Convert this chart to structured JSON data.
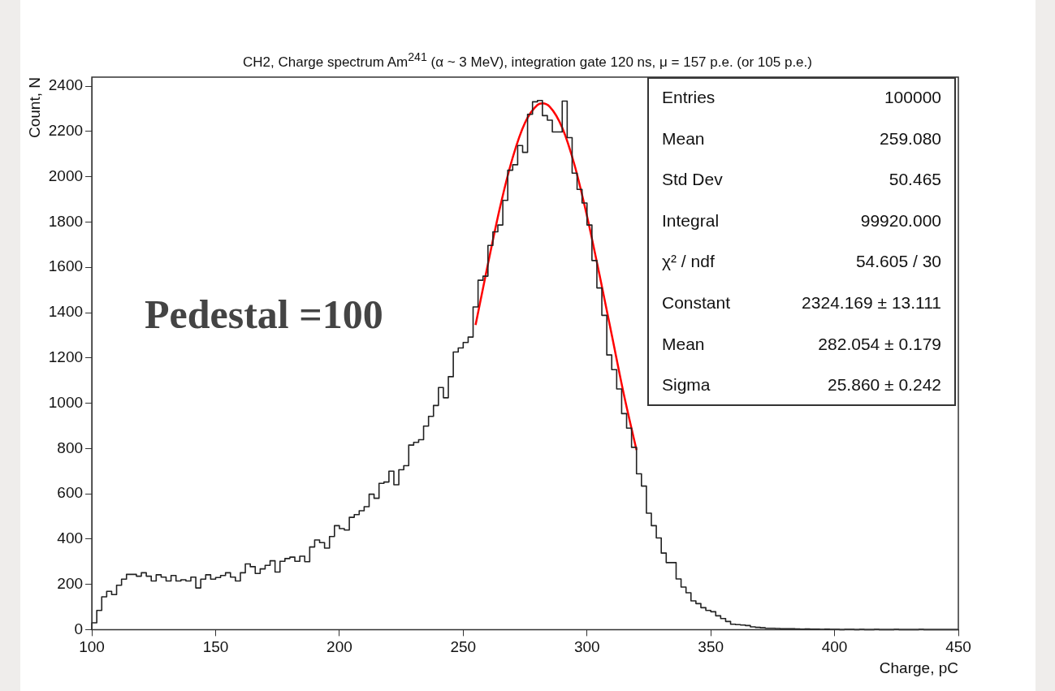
{
  "chart_data": {
    "type": "histogram",
    "title": "CH2, Charge spectrum Am$^{241}$ (α ~ 3 MeV), integration gate 120 ns, μ = 157 p.e. (or 105 p.e.)",
    "xlabel": "Charge, pC",
    "ylabel": "Count, N",
    "bins": [
      100,
      102,
      104,
      106,
      108,
      110,
      112,
      114,
      116,
      118,
      120,
      122,
      124,
      126,
      128,
      130,
      132,
      134,
      136,
      138,
      140,
      142,
      144,
      146,
      148,
      150,
      152,
      154,
      156,
      158,
      160,
      162,
      164,
      166,
      168,
      170,
      172,
      174,
      176,
      178,
      180,
      182,
      184,
      186,
      188,
      190,
      192,
      194,
      196,
      198,
      200,
      202,
      204,
      206,
      208,
      210,
      212,
      214,
      216,
      218,
      220,
      222,
      224,
      226,
      228,
      230,
      232,
      234,
      236,
      238,
      240,
      242,
      244,
      246,
      248,
      250,
      252,
      254,
      256,
      258,
      260,
      262,
      264,
      266,
      268,
      270,
      272,
      274,
      276,
      278,
      280,
      282,
      284,
      286,
      288,
      290,
      292,
      294,
      296,
      298,
      300,
      302,
      304,
      306,
      308,
      310,
      312,
      314,
      316,
      318,
      320,
      322,
      324,
      326,
      328,
      330,
      332,
      334,
      336,
      338,
      340,
      342,
      344,
      346,
      348,
      350,
      352,
      354,
      356,
      358,
      360,
      362,
      364,
      366,
      368,
      370,
      372,
      374,
      376,
      378,
      380,
      382,
      384,
      386,
      388,
      390,
      392,
      394,
      396,
      398,
      400,
      402,
      404,
      406,
      408,
      410,
      412,
      414,
      416,
      418,
      420,
      422,
      424,
      426,
      428,
      430,
      432,
      434,
      436,
      438,
      440,
      442,
      444,
      446,
      448,
      450
    ],
    "values": [
      30,
      85,
      145,
      169,
      155,
      196,
      223,
      244,
      244,
      236,
      251,
      236,
      215,
      242,
      232,
      215,
      239,
      215,
      220,
      215,
      232,
      184,
      223,
      242,
      223,
      230,
      239,
      251,
      232,
      215,
      251,
      290,
      278,
      248,
      268,
      284,
      304,
      254,
      302,
      314,
      320,
      302,
      324,
      300,
      365,
      396,
      384,
      360,
      411,
      459,
      446,
      440,
      496,
      508,
      525,
      543,
      598,
      580,
      646,
      652,
      700,
      640,
      706,
      724,
      815,
      827,
      839,
      899,
      942,
      990,
      1069,
      1024,
      1117,
      1226,
      1244,
      1268,
      1292,
      1425,
      1543,
      1561,
      1697,
      1757,
      1787,
      1896,
      2029,
      2053,
      2138,
      2108,
      2276,
      2331,
      2337,
      2270,
      2250,
      2198,
      2198,
      2334,
      2173,
      2016,
      1944,
      1884,
      1787,
      1630,
      1509,
      1388,
      1213,
      1148,
      1063,
      954,
      890,
      805,
      688,
      634,
      514,
      459,
      405,
      338,
      296,
      296,
      224,
      188,
      163,
      127,
      115,
      97,
      85,
      79,
      61,
      49,
      36,
      24,
      22,
      20,
      18,
      12,
      10,
      8,
      6,
      6,
      5,
      4,
      4,
      4,
      3,
      2,
      3,
      2,
      2,
      1,
      2,
      1,
      1,
      0,
      1,
      1,
      0,
      1,
      0,
      0,
      1,
      0,
      0,
      0,
      1,
      0,
      0,
      0,
      0,
      1,
      0,
      0,
      0,
      0,
      0,
      0,
      0
    ],
    "color": "#222222",
    "series": [
      {
        "type": "line",
        "color": "#ff0000",
        "x": [
          255,
          260,
          265,
          270,
          275,
          280,
          282,
          285,
          290,
          295,
          300,
          305,
          310,
          315,
          320
        ],
        "values": [
          1345,
          1615,
          1871,
          2085,
          2239,
          2317,
          2324,
          2309,
          2217,
          2051,
          1827,
          1570,
          1302,
          1033,
          793
        ]
      }
    ],
    "xlim": [
      100,
      450
    ],
    "xticks": [
      100,
      150,
      200,
      250,
      300,
      350,
      400,
      450
    ],
    "ylim": [
      0,
      2440
    ],
    "yticks": [
      0,
      200,
      400,
      600,
      800,
      1000,
      1200,
      1400,
      1600,
      1800,
      2000,
      2200,
      2400
    ],
    "grid": false,
    "legend": false,
    "marker": "none",
    "line_style": "solid",
    "annotations": [
      "Pedestal =100",
      "Entries",
      "100000",
      "Mean",
      "259.080",
      "Std Dev",
      "50.465",
      "Integral",
      "99920.000",
      "χ² / ndf",
      "54.605 / 30",
      "Constant",
      "2324.169 ± 13.111",
      "Mean",
      "282.054 ± 0.179",
      "Sigma",
      "25.860 ± 0.242"
    ]
  }
}
